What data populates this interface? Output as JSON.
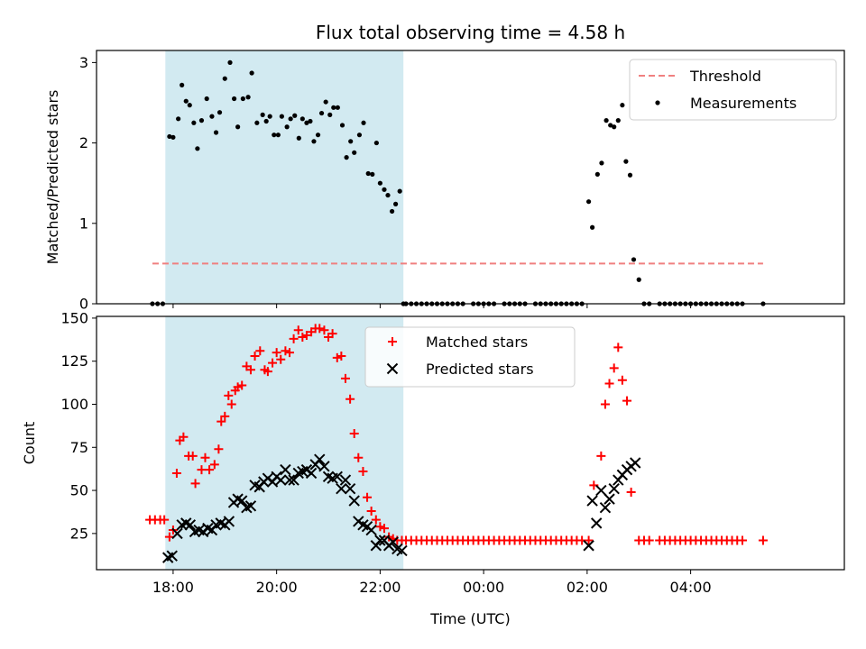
{
  "chart_data": {
    "title": "Flux total observing time = 4.58 h",
    "xlabel": "Time (UTC)",
    "x_unit": "hours (UTC), values >= 24 are after midnight of the next day",
    "xlim": [
      16.52,
      30.97
    ],
    "xticks": [
      {
        "value": 18,
        "label": "18:00"
      },
      {
        "value": 20,
        "label": "20:00"
      },
      {
        "value": 22,
        "label": "22:00"
      },
      {
        "value": 24,
        "label": "00:00"
      },
      {
        "value": 26,
        "label": "02:00"
      },
      {
        "value": 28,
        "label": "04:00"
      }
    ],
    "highlight_span": {
      "x_start": 17.85,
      "x_end": 22.45,
      "color": "#add8e6"
    },
    "panels": [
      {
        "type": "scatter",
        "ylabel": "Matched/Predicted stars",
        "ylim": [
          0,
          3.15
        ],
        "yticks": [
          0,
          1,
          2,
          3
        ],
        "legend": {
          "position": "top-right",
          "entries": [
            "Threshold",
            "Measurements"
          ]
        },
        "threshold": {
          "name": "Threshold",
          "value": 0.5,
          "x_range": [
            17.6,
            29.4
          ],
          "color": "#f08080",
          "style": "dashed"
        },
        "measurements": {
          "name": "Measurements",
          "color": "#000000",
          "x": [
            17.6,
            17.7,
            17.8,
            17.93,
            18.0,
            18.1,
            18.17,
            18.25,
            18.32,
            18.4,
            18.47,
            18.55,
            18.65,
            18.75,
            18.83,
            18.9,
            19.0,
            19.1,
            19.18,
            19.25,
            19.35,
            19.45,
            19.52,
            19.62,
            19.73,
            19.8,
            19.87,
            19.95,
            20.03,
            20.1,
            20.2,
            20.27,
            20.35,
            20.43,
            20.5,
            20.58,
            20.65,
            20.72,
            20.8,
            20.87,
            20.95,
            21.03,
            21.1,
            21.18,
            21.27,
            21.35,
            21.43,
            21.5,
            21.6,
            21.68,
            21.77,
            21.85,
            21.93,
            22.0,
            22.08,
            22.15,
            22.23,
            22.3,
            22.38,
            22.45,
            22.5,
            22.6,
            22.7,
            22.8,
            22.9,
            23.0,
            23.1,
            23.2,
            23.3,
            23.4,
            23.5,
            23.6,
            23.8,
            23.9,
            24.0,
            24.1,
            24.2,
            24.4,
            24.5,
            24.6,
            24.7,
            24.8,
            25.0,
            25.1,
            25.2,
            25.3,
            25.4,
            25.5,
            25.6,
            25.7,
            25.8,
            25.9,
            26.03,
            26.1,
            26.2,
            26.28,
            26.37,
            26.45,
            26.52,
            26.6,
            26.68,
            26.75,
            26.83,
            26.9,
            27.0,
            27.1,
            27.2,
            27.4,
            27.5,
            27.6,
            27.7,
            27.8,
            27.9,
            28.0,
            28.1,
            28.2,
            28.3,
            28.4,
            28.5,
            28.6,
            28.7,
            28.8,
            28.9,
            29.0,
            29.4
          ],
          "y": [
            0,
            0,
            0,
            2.08,
            2.07,
            2.3,
            2.72,
            2.52,
            2.47,
            2.25,
            1.93,
            2.28,
            2.55,
            2.33,
            2.13,
            2.38,
            2.8,
            3.0,
            2.55,
            2.2,
            2.55,
            2.57,
            2.87,
            2.25,
            2.35,
            2.27,
            2.33,
            2.1,
            2.1,
            2.33,
            2.2,
            2.3,
            2.34,
            2.06,
            2.3,
            2.25,
            2.27,
            2.02,
            2.1,
            2.37,
            2.51,
            2.35,
            2.44,
            2.44,
            2.22,
            1.82,
            2.02,
            1.88,
            2.1,
            2.25,
            1.62,
            1.61,
            2.0,
            1.5,
            1.42,
            1.35,
            1.15,
            1.24,
            1.4,
            0,
            0,
            0,
            0,
            0,
            0,
            0,
            0,
            0,
            0,
            0,
            0,
            0,
            0,
            0,
            0,
            0,
            0,
            0,
            0,
            0,
            0,
            0,
            0,
            0,
            0,
            0,
            0,
            0,
            0,
            0,
            0,
            0,
            1.27,
            0.95,
            1.61,
            1.75,
            2.28,
            2.22,
            2.2,
            2.28,
            2.47,
            1.77,
            1.6,
            0.55,
            0.3,
            0,
            0,
            0,
            0,
            0,
            0,
            0,
            0,
            0,
            0,
            0,
            0,
            0,
            0,
            0,
            0,
            0,
            0,
            0,
            0
          ]
        }
      },
      {
        "type": "scatter",
        "ylabel": "Count",
        "ylim": [
          4,
          151
        ],
        "yticks": [
          25,
          50,
          75,
          100,
          125,
          150
        ],
        "legend": {
          "position": "top-center",
          "entries": [
            "Matched stars",
            "Predicted stars"
          ]
        },
        "series": [
          {
            "name": "Matched stars",
            "marker": "+",
            "color": "#ff0000",
            "x": [
              17.55,
              17.65,
              17.75,
              17.83,
              17.93,
              18.0,
              18.07,
              18.13,
              18.2,
              18.3,
              18.38,
              18.43,
              18.55,
              18.62,
              18.7,
              18.8,
              18.88,
              18.93,
              19.0,
              19.07,
              19.13,
              19.2,
              19.25,
              19.33,
              19.42,
              19.5,
              19.58,
              19.68,
              19.77,
              19.83,
              19.92,
              20.0,
              20.08,
              20.17,
              20.25,
              20.33,
              20.42,
              20.5,
              20.58,
              20.67,
              20.75,
              20.83,
              20.92,
              21.0,
              21.08,
              21.17,
              21.25,
              21.33,
              21.42,
              21.5,
              21.58,
              21.67,
              21.75,
              21.83,
              21.92,
              22.0,
              22.08,
              22.17,
              22.25,
              22.33,
              22.42,
              22.5,
              22.6,
              22.7,
              22.8,
              22.9,
              23.0,
              23.1,
              23.2,
              23.3,
              23.4,
              23.5,
              23.6,
              23.7,
              23.8,
              23.9,
              24.0,
              24.1,
              24.2,
              24.3,
              24.4,
              24.5,
              24.6,
              24.7,
              24.8,
              24.9,
              25.0,
              25.1,
              25.2,
              25.3,
              25.4,
              25.5,
              25.6,
              25.7,
              25.8,
              25.9,
              26.03,
              26.13,
              26.27,
              26.35,
              26.43,
              26.52,
              26.6,
              26.68,
              26.77,
              26.85,
              27.0,
              27.1,
              27.2,
              27.4,
              27.5,
              27.6,
              27.7,
              27.8,
              27.9,
              28.0,
              28.1,
              28.2,
              28.3,
              28.4,
              28.5,
              28.6,
              28.7,
              28.8,
              28.9,
              29.0,
              29.4
            ],
            "y": [
              33,
              33,
              33,
              33,
              23,
              27,
              60,
              79,
              81,
              70,
              70,
              54,
              62,
              69,
              62,
              65,
              74,
              90,
              93,
              105,
              100,
              108,
              110,
              111,
              122,
              120,
              128,
              131,
              120,
              119,
              124,
              130,
              126,
              131,
              130,
              138,
              143,
              139,
              140,
              142,
              144,
              144,
              143,
              139,
              141,
              127,
              128,
              115,
              103,
              83,
              69,
              61,
              46,
              38,
              33,
              29,
              28,
              23,
              22,
              21,
              21,
              21,
              21,
              21,
              21,
              21,
              21,
              21,
              21,
              21,
              21,
              21,
              21,
              21,
              21,
              21,
              21,
              21,
              21,
              21,
              21,
              21,
              21,
              21,
              21,
              21,
              21,
              21,
              21,
              21,
              21,
              21,
              21,
              21,
              21,
              21,
              21,
              53,
              70,
              100,
              112,
              121,
              133,
              114,
              102,
              49,
              21,
              21,
              21,
              21,
              21,
              21,
              21,
              21,
              21,
              21,
              21,
              21,
              21,
              21,
              21,
              21,
              21,
              21,
              21,
              21,
              21
            ]
          },
          {
            "name": "Predicted stars",
            "marker": "x",
            "color": "#000000",
            "x": [
              17.9,
              17.98,
              18.08,
              18.17,
              18.25,
              18.33,
              18.42,
              18.5,
              18.58,
              18.67,
              18.75,
              18.83,
              18.92,
              19.0,
              19.08,
              19.17,
              19.25,
              19.33,
              19.42,
              19.5,
              19.58,
              19.67,
              19.75,
              19.83,
              19.92,
              20.0,
              20.08,
              20.17,
              20.25,
              20.33,
              20.42,
              20.5,
              20.58,
              20.67,
              20.75,
              20.83,
              20.92,
              21.0,
              21.08,
              21.17,
              21.25,
              21.33,
              21.42,
              21.5,
              21.58,
              21.67,
              21.75,
              21.83,
              21.92,
              22.0,
              22.08,
              22.17,
              22.25,
              22.33,
              22.42,
              26.03,
              26.1,
              26.18,
              26.27,
              26.35,
              26.43,
              26.52,
              26.6,
              26.68,
              26.77,
              26.85,
              26.93
            ],
            "y": [
              11,
              12,
              25,
              30,
              31,
              30,
              26,
              27,
              26,
              28,
              27,
              30,
              31,
              30,
              32,
              43,
              45,
              44,
              40,
              41,
              53,
              52,
              55,
              57,
              55,
              58,
              56,
              62,
              56,
              56,
              60,
              61,
              62,
              60,
              65,
              68,
              64,
              58,
              57,
              58,
              51,
              56,
              51,
              44,
              32,
              30,
              29,
              27,
              18,
              21,
              21,
              18,
              20,
              16,
              15,
              18,
              44,
              31,
              50,
              40,
              45,
              51,
              56,
              59,
              62,
              64,
              66
            ]
          }
        ]
      }
    ]
  }
}
